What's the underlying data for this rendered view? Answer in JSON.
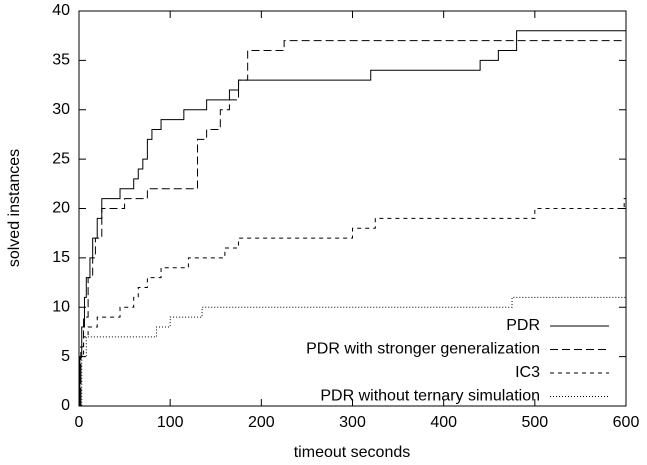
{
  "chart_data": {
    "type": "line",
    "step": true,
    "xlabel": "timeout seconds",
    "ylabel": "solved instances",
    "xlim": [
      0,
      600
    ],
    "xticks": [
      0,
      100,
      200,
      300,
      400,
      500,
      600
    ],
    "ylim": [
      0,
      40
    ],
    "yticks": [
      0,
      5,
      10,
      15,
      20,
      25,
      30,
      35,
      40
    ],
    "legend": "bottom-right",
    "series": [
      {
        "name": "PDR",
        "color": "#000000",
        "style": "solid",
        "x": [
          0,
          1,
          3,
          6,
          8,
          12,
          15,
          20,
          25,
          45,
          60,
          65,
          70,
          75,
          80,
          90,
          115,
          140,
          165,
          175,
          320,
          440,
          460,
          480,
          600
        ],
        "values": [
          0,
          5,
          8,
          11,
          13,
          15,
          17,
          19,
          21,
          22,
          23,
          24,
          25,
          27,
          28,
          29,
          30,
          31,
          32,
          33,
          34,
          35,
          36,
          38,
          38
        ]
      },
      {
        "name": "PDR with stronger generalization",
        "color": "#000000",
        "style": "dashed",
        "x": [
          0,
          2,
          5,
          10,
          15,
          18,
          25,
          50,
          75,
          130,
          140,
          155,
          165,
          175,
          185,
          225,
          600
        ],
        "values": [
          0,
          6,
          9,
          13,
          15,
          17,
          20,
          21,
          22,
          27,
          28,
          30,
          31,
          33,
          36,
          37,
          37
        ]
      },
      {
        "name": "IC3",
        "color": "#000000",
        "style": "short-dashed",
        "x": [
          0,
          2,
          5,
          10,
          20,
          45,
          60,
          65,
          75,
          90,
          120,
          160,
          175,
          300,
          325,
          500,
          598,
          600
        ],
        "values": [
          0,
          5,
          7,
          8,
          9,
          10,
          11,
          12,
          13,
          14,
          15,
          16,
          17,
          18,
          19,
          20,
          21,
          21
        ]
      },
      {
        "name": "PDR without ternary simulation",
        "color": "#000000",
        "style": "dotted",
        "x": [
          0,
          3,
          8,
          85,
          100,
          135,
          475,
          600
        ],
        "values": [
          0,
          5,
          7,
          8,
          9,
          10,
          11,
          11
        ]
      }
    ]
  }
}
